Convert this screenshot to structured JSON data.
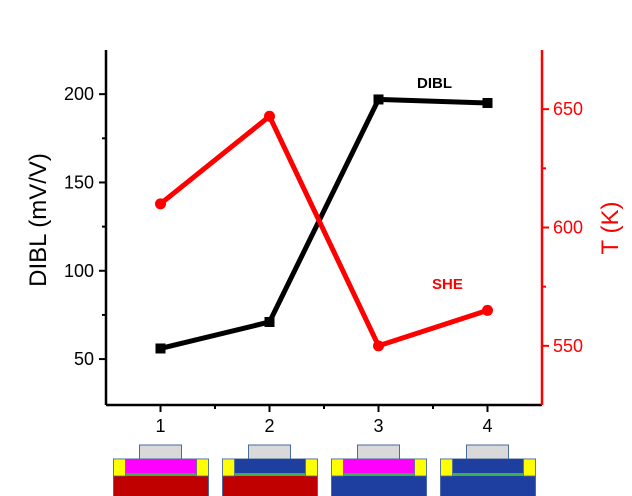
{
  "chart_data": {
    "type": "line",
    "title": "",
    "xlabel": "",
    "x": [
      1,
      2,
      3,
      4
    ],
    "x_tick_labels": [
      "1",
      "2",
      "3",
      "4"
    ],
    "xlim": [
      0.5,
      4.5
    ],
    "series": [
      {
        "name": "DIBL",
        "axis": "left",
        "marker": "square",
        "color": "#000000",
        "values": [
          56,
          71,
          197,
          195
        ]
      },
      {
        "name": "SHE",
        "axis": "right",
        "marker": "circle",
        "color": "#ff0000",
        "values": [
          610,
          647,
          550,
          565
        ]
      }
    ],
    "left_axis": {
      "label": "DIBL (mV/V)",
      "ylim": [
        24,
        225
      ],
      "ticks": [
        50,
        100,
        150,
        200
      ],
      "tick_labels": [
        "50",
        "100",
        "150",
        "200"
      ],
      "minor_ticks": [
        75,
        125,
        175
      ],
      "color": "#000000"
    },
    "right_axis": {
      "label": "T (K)",
      "ylim": [
        525,
        675
      ],
      "ticks": [
        550,
        600,
        650
      ],
      "tick_labels": [
        "550",
        "600",
        "650"
      ],
      "minor_ticks": [
        575,
        625
      ],
      "color": "#ff0000"
    },
    "annotations": [
      {
        "text": "DIBL",
        "color": "#000000"
      },
      {
        "text": "SHE",
        "color": "#ff0000"
      }
    ],
    "grid": false,
    "legend": "none (inline labels)"
  },
  "device_icons": [
    {
      "index": 1,
      "channel_color": "#ff00ff",
      "substrate_color": "#c00000"
    },
    {
      "index": 2,
      "channel_color": "#1f3fa0",
      "substrate_color": "#c00000"
    },
    {
      "index": 3,
      "channel_color": "#ff00ff",
      "substrate_color": "#1f3fa0"
    },
    {
      "index": 4,
      "channel_color": "#1f3fa0",
      "substrate_color": "#1f3fa0"
    }
  ],
  "colors": {
    "gate": "#d9d9d9",
    "contact": "#ffff00",
    "interface": "#3cb04a",
    "outline": "#4a6aa0"
  }
}
